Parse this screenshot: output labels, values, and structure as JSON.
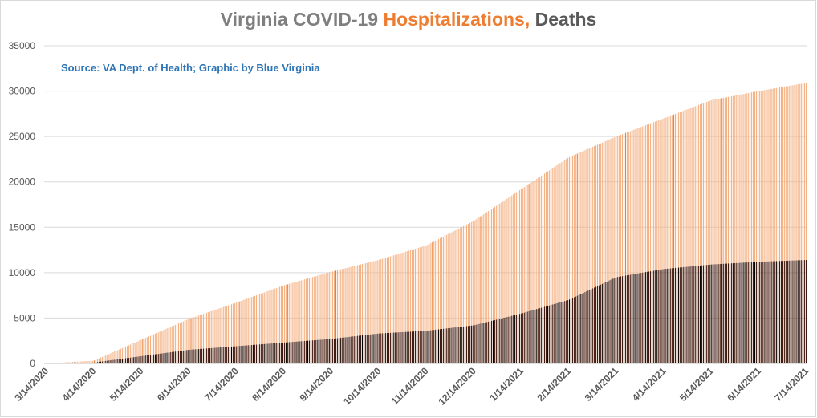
{
  "colors": {
    "title_part1": "#7f7f7f",
    "hospitalizations": "#ed7d31",
    "hospitalizations_bar": "#f4b183",
    "deaths": "#595959",
    "deaths_bar": "#3d1a12",
    "source_text": "#2e75b6",
    "gridline": "#d9d9d9",
    "axis": "#bfbfbf"
  },
  "title": {
    "part1": "Virginia COVID-19 ",
    "part2": "Hospitalizations,",
    "part3": " Deaths"
  },
  "source": "Source: VA Dept. of Health; Graphic by Blue Virginia",
  "chart_data": {
    "type": "bar",
    "title": "Virginia COVID-19 Hospitalizations, Deaths",
    "xlabel": "",
    "ylabel": "",
    "ylim": [
      0,
      35000
    ],
    "yticks": [
      0,
      5000,
      10000,
      15000,
      20000,
      25000,
      30000,
      35000
    ],
    "xticks": [
      "3/14/2020",
      "4/14/2020",
      "5/14/2020",
      "6/14/2020",
      "7/14/2020",
      "8/14/2020",
      "9/14/2020",
      "10/14/2020",
      "11/14/2020",
      "12/14/2020",
      "1/14/2021",
      "2/14/2021",
      "3/14/2021",
      "4/14/2021",
      "5/14/2021",
      "6/14/2021",
      "7/14/2021"
    ],
    "grid": true,
    "legend": "none",
    "series": [
      {
        "name": "Hospitalizations",
        "style": "overlapping daily bars",
        "values_at_xticks": [
          0,
          300,
          2600,
          4900,
          6700,
          8600,
          10100,
          11400,
          13000,
          15700,
          19200,
          22700,
          25000,
          27000,
          29000,
          30000,
          30900
        ]
      },
      {
        "name": "Deaths",
        "style": "overlapping daily bars",
        "values_at_xticks": [
          0,
          100,
          800,
          1500,
          1900,
          2300,
          2700,
          3300,
          3600,
          4200,
          5500,
          7000,
          9500,
          10400,
          10900,
          11200,
          11400
        ]
      }
    ]
  }
}
